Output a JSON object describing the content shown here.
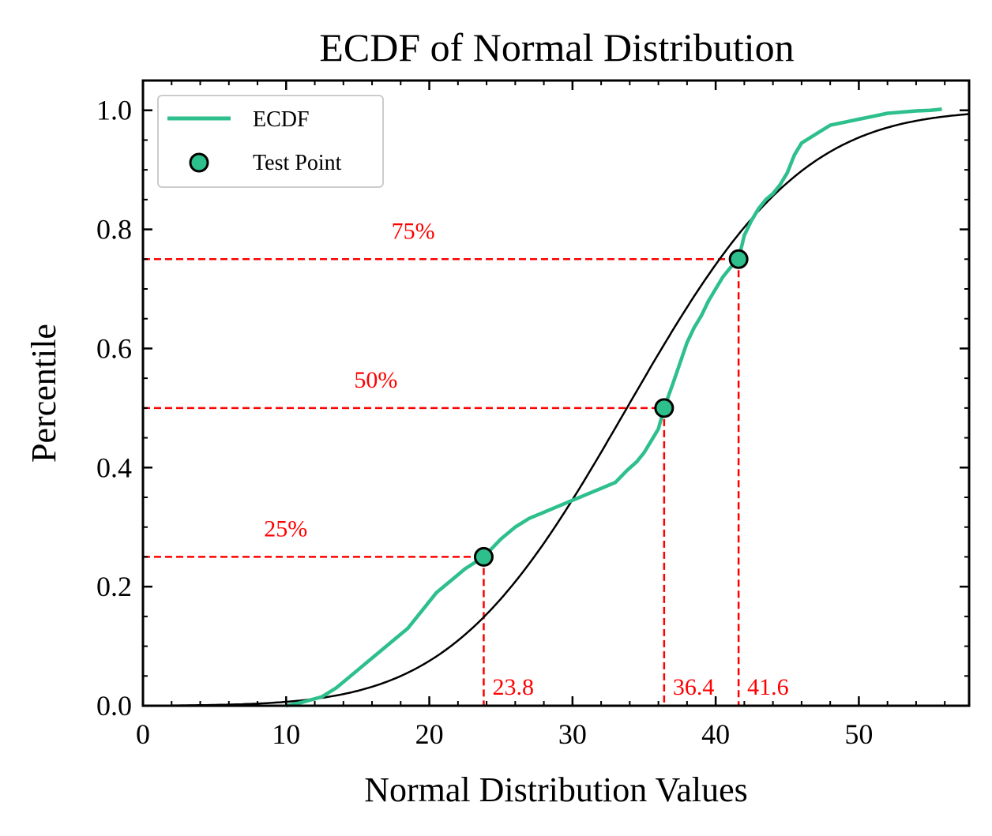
{
  "chart_data": {
    "type": "line",
    "title": "ECDF of Normal Distribution",
    "xlabel": "Normal Distribution Values",
    "ylabel": "Percentile",
    "xlim": [
      0,
      57.7
    ],
    "ylim": [
      0,
      1.05
    ],
    "x_ticks": [
      0,
      10,
      20,
      30,
      40,
      50
    ],
    "x_tick_labels": [
      "0",
      "10",
      "20",
      "30",
      "40",
      "50"
    ],
    "y_ticks": [
      0.0,
      0.2,
      0.4,
      0.6,
      0.8,
      1.0
    ],
    "y_tick_labels": [
      "0.0",
      "0.2",
      "0.4",
      "0.6",
      "0.8",
      "1.0"
    ],
    "grid": false,
    "legend": {
      "placement": "top-left",
      "entries": [
        {
          "label": "ECDF",
          "kind": "line"
        },
        {
          "label": "Test Point",
          "kind": "marker"
        }
      ]
    },
    "colors": {
      "ecdf": "#2dbf8c",
      "normal_cdf": "#000000",
      "guides": "#ff0000",
      "marker_edge": "#000000"
    },
    "series": [
      {
        "name": "ECDF",
        "x": [
          10.0,
          11.0,
          12.5,
          13.5,
          14.5,
          15.5,
          16.5,
          17.5,
          18.5,
          19.5,
          20.5,
          21.5,
          22.5,
          23.8,
          25.0,
          26.0,
          27.0,
          28.0,
          29.0,
          30.0,
          31.0,
          32.0,
          33.0,
          33.8,
          34.5,
          35.0,
          35.5,
          36.0,
          36.4,
          37.0,
          37.5,
          38.0,
          38.5,
          39.0,
          39.5,
          40.0,
          40.5,
          41.0,
          41.6,
          42.0,
          42.5,
          43.0,
          43.5,
          44.0,
          44.5,
          45.0,
          45.5,
          46.0,
          47.0,
          48.0,
          49.0,
          50.0,
          51.0,
          52.0,
          53.0,
          54.0,
          55.0,
          55.8
        ],
        "y": [
          0.0,
          0.005,
          0.015,
          0.03,
          0.05,
          0.07,
          0.09,
          0.11,
          0.13,
          0.16,
          0.19,
          0.21,
          0.23,
          0.25,
          0.28,
          0.3,
          0.315,
          0.325,
          0.335,
          0.345,
          0.355,
          0.365,
          0.375,
          0.395,
          0.41,
          0.425,
          0.445,
          0.465,
          0.5,
          0.54,
          0.575,
          0.61,
          0.635,
          0.655,
          0.68,
          0.7,
          0.72,
          0.735,
          0.75,
          0.79,
          0.815,
          0.835,
          0.85,
          0.86,
          0.875,
          0.895,
          0.925,
          0.945,
          0.96,
          0.975,
          0.98,
          0.985,
          0.99,
          0.995,
          0.997,
          0.999,
          1.0,
          1.002
        ]
      },
      {
        "name": "",
        "kind": "normal-cdf",
        "mean": 33.8,
        "std": 9.6
      }
    ],
    "test_points": [
      {
        "x": 23.8,
        "y": 0.25,
        "x_label": "23.8",
        "y_label": "25%"
      },
      {
        "x": 36.4,
        "y": 0.5,
        "x_label": "36.4",
        "y_label": "50%"
      },
      {
        "x": 41.6,
        "y": 0.75,
        "x_label": "41.6",
        "y_label": "75%"
      }
    ]
  }
}
